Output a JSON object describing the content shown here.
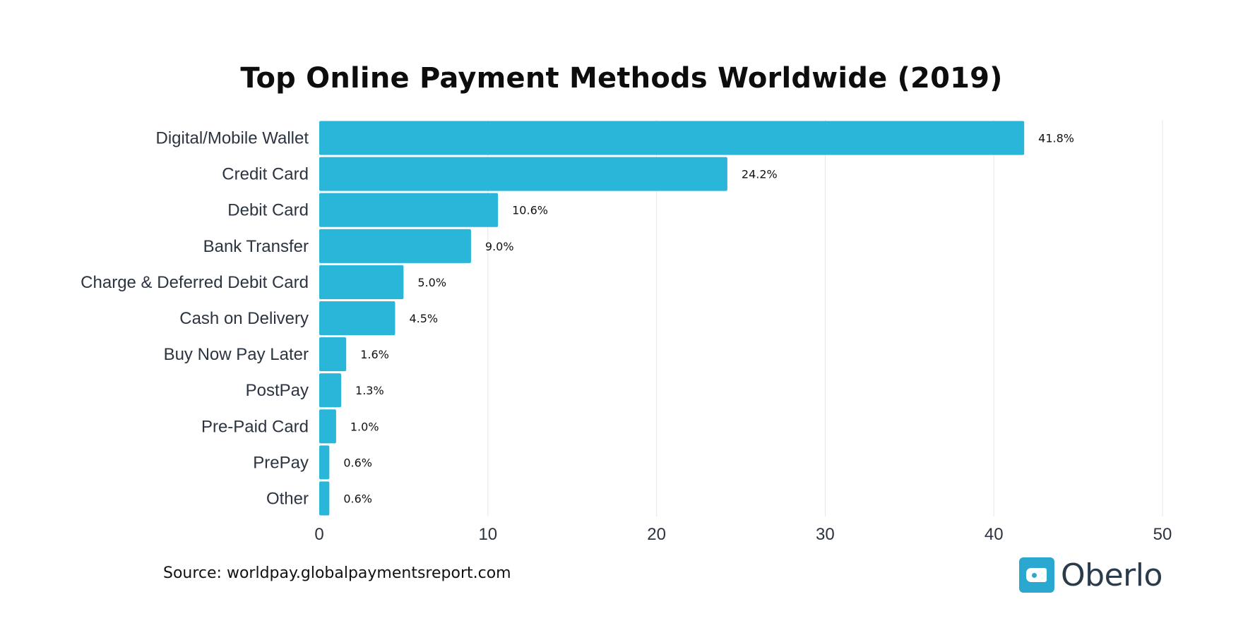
{
  "chart_data": {
    "type": "bar",
    "orientation": "horizontal",
    "title": "Top Online Payment Methods Worldwide (2019)",
    "categories": [
      "Digital/Mobile Wallet",
      "Credit Card",
      "Debit Card",
      "Bank Transfer",
      "Charge & Deferred Debit Card",
      "Cash on Delivery",
      "Buy Now Pay Later",
      "PostPay",
      "Pre-Paid Card",
      "PrePay",
      "Other"
    ],
    "values": [
      41.8,
      24.2,
      10.6,
      9.0,
      5.0,
      4.5,
      1.6,
      1.3,
      1.0,
      0.6,
      0.6
    ],
    "value_labels": [
      "41.8%",
      "24.2%",
      "10.6%",
      "9.0%",
      "5.0%",
      "4.5%",
      "1.6%",
      "1.3%",
      "1.0%",
      "0.6%",
      "0.6%"
    ],
    "xlim": [
      0,
      50
    ],
    "xticks": [
      0,
      10,
      20,
      30,
      40,
      50
    ],
    "grid": "vertical",
    "bar_color": "#29b6d9",
    "grid_color": "#e6e6e6"
  },
  "footer": {
    "source": "Source: worldpay.globalpaymentsreport.com",
    "logo_text": "Oberlo",
    "logo_icon": "price-tag-icon",
    "logo_color": "#2aa8cf"
  }
}
